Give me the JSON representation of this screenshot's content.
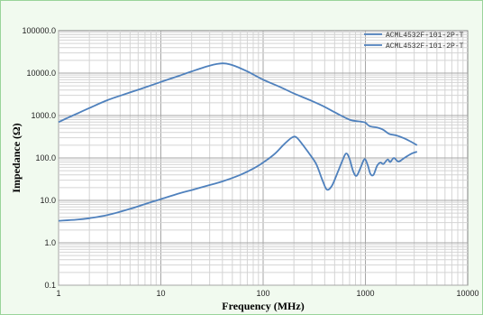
{
  "chart_data": {
    "type": "line",
    "xlabel": "Frequency (MHz)",
    "ylabel": "Impedance (Ω)",
    "x_scale": "log",
    "y_scale": "log",
    "xlim": [
      1,
      10000
    ],
    "ylim": [
      0.1,
      100000
    ],
    "x_ticks": [
      "1",
      "10",
      "100",
      "1000",
      "10000"
    ],
    "y_ticks": [
      "0.1",
      "1.0",
      "10.0",
      "100.0",
      "1000.0",
      "10000.0",
      "100000.0"
    ],
    "grid": true,
    "legend_position": "top-right",
    "series": [
      {
        "name": "ACML4532F-101-2P-T",
        "color": "#4f81bd",
        "points": [
          [
            1,
            700
          ],
          [
            1.5,
            1100
          ],
          [
            2,
            1500
          ],
          [
            3,
            2300
          ],
          [
            5,
            3500
          ],
          [
            7,
            4600
          ],
          [
            10,
            6200
          ],
          [
            15,
            8600
          ],
          [
            20,
            11000
          ],
          [
            30,
            15000
          ],
          [
            40,
            17000
          ],
          [
            50,
            15500
          ],
          [
            70,
            11000
          ],
          [
            100,
            7000
          ],
          [
            150,
            4600
          ],
          [
            200,
            3300
          ],
          [
            300,
            2200
          ],
          [
            400,
            1600
          ],
          [
            500,
            1200
          ],
          [
            700,
            800
          ],
          [
            900,
            720
          ],
          [
            1000,
            680
          ],
          [
            1100,
            560
          ],
          [
            1300,
            520
          ],
          [
            1500,
            460
          ],
          [
            1700,
            370
          ],
          [
            2000,
            340
          ],
          [
            2400,
            290
          ],
          [
            2800,
            240
          ],
          [
            3200,
            200
          ]
        ]
      },
      {
        "name": "ACML4532F-101-2P-T",
        "color": "#4f81bd",
        "points": [
          [
            1,
            3.3
          ],
          [
            1.5,
            3.5
          ],
          [
            2,
            3.8
          ],
          [
            3,
            4.5
          ],
          [
            5,
            6.3
          ],
          [
            7,
            8.2
          ],
          [
            10,
            10.7
          ],
          [
            15,
            14.5
          ],
          [
            20,
            17.5
          ],
          [
            30,
            23
          ],
          [
            40,
            28
          ],
          [
            60,
            40
          ],
          [
            80,
            56
          ],
          [
            100,
            78
          ],
          [
            130,
            125
          ],
          [
            160,
            210
          ],
          [
            190,
            300
          ],
          [
            210,
            310
          ],
          [
            240,
            215
          ],
          [
            280,
            130
          ],
          [
            330,
            72
          ],
          [
            380,
            30
          ],
          [
            420,
            18
          ],
          [
            470,
            22
          ],
          [
            540,
            48
          ],
          [
            600,
            90
          ],
          [
            650,
            128
          ],
          [
            700,
            95
          ],
          [
            760,
            48
          ],
          [
            820,
            38
          ],
          [
            900,
            60
          ],
          [
            960,
            88
          ],
          [
            1000,
            92
          ],
          [
            1060,
            65
          ],
          [
            1120,
            42
          ],
          [
            1200,
            40
          ],
          [
            1300,
            65
          ],
          [
            1400,
            78
          ],
          [
            1500,
            72
          ],
          [
            1650,
            92
          ],
          [
            1750,
            80
          ],
          [
            1900,
            100
          ],
          [
            2100,
            82
          ],
          [
            2400,
            100
          ],
          [
            2800,
            125
          ],
          [
            3200,
            140
          ]
        ]
      }
    ]
  }
}
